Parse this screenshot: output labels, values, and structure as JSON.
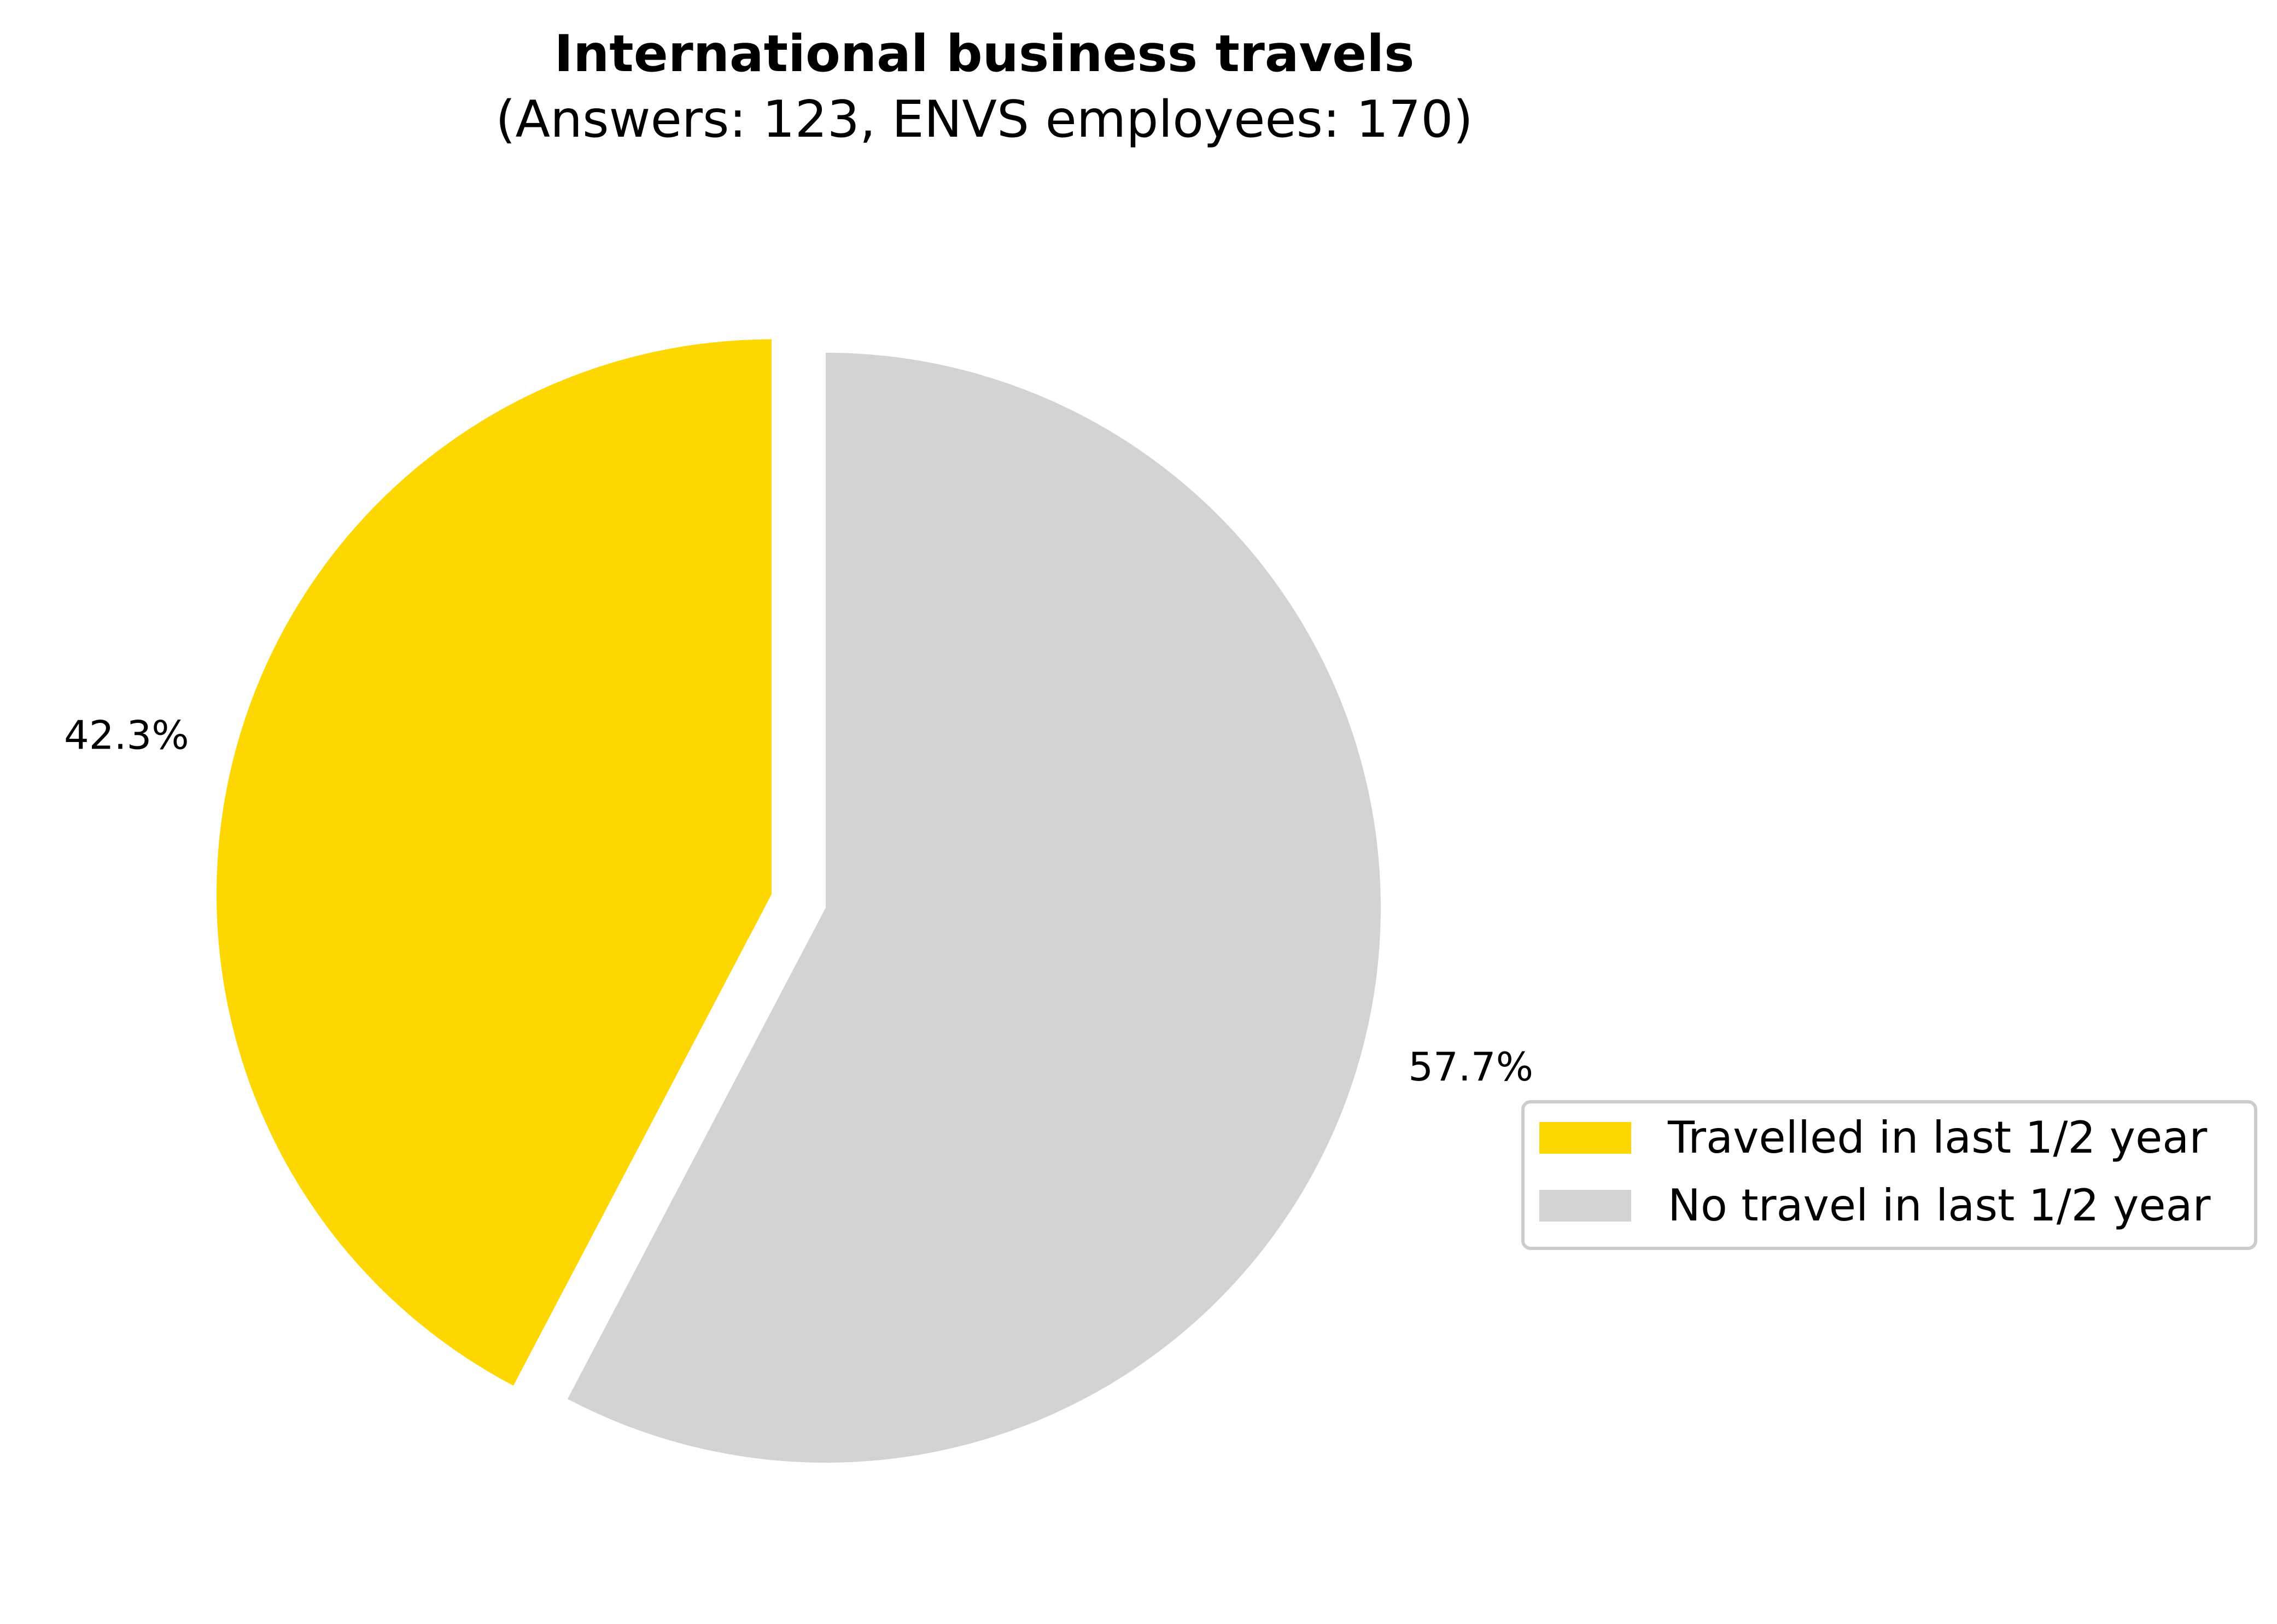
{
  "chart_data": {
    "type": "pie",
    "title": "International business travels",
    "subtitle": "(Answers: 123, ENVS employees: 170)",
    "slices": [
      {
        "label": "Travelled in last 1/2 year",
        "value": 42.3,
        "display": "42.3%",
        "color": "#FFD700",
        "exploded": true
      },
      {
        "label": "No travel in last 1/2 year",
        "value": 57.7,
        "display": "57.7%",
        "color": "#D3D3D3",
        "exploded": false
      }
    ],
    "start_angle": "90 degrees (top), counter-clockwise",
    "legend": {
      "placement": "right",
      "entries": [
        "Travelled in last 1/2 year",
        "No travel in last 1/2 year"
      ]
    }
  }
}
